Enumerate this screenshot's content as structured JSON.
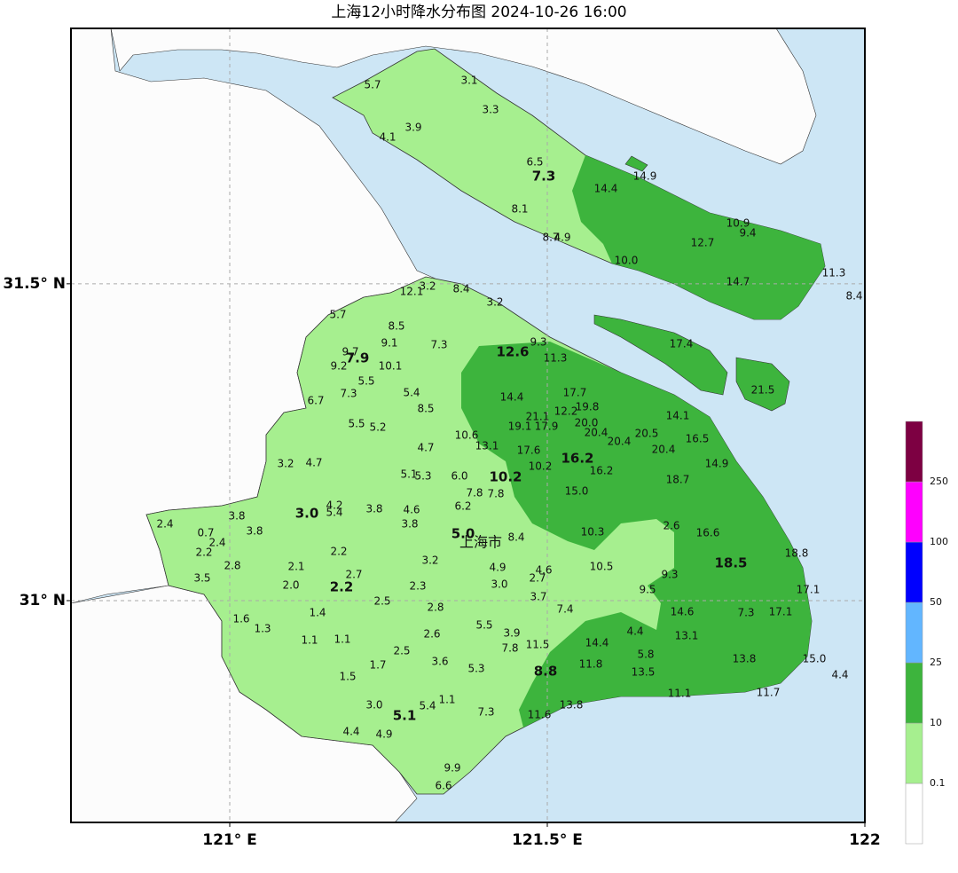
{
  "title": "上海12小时降水分布图 2024-10-26 16:00",
  "map": {
    "xlim": [
      120.75,
      122
    ],
    "ylim": [
      30.65,
      31.903
    ],
    "xticks": [
      {
        "value": 121,
        "label": "121° E"
      },
      {
        "value": 121.5,
        "label": "121.5° E"
      },
      122
    ],
    "yticks": [
      {
        "value": 31,
        "label": "31° N"
      },
      {
        "value": 31.5,
        "label": "31.5° N"
      }
    ],
    "grid": true,
    "city_label": "上海市",
    "stations": [
      "5.7",
      "3.1",
      "3.3",
      "3.9",
      "4.1",
      "6.5",
      "14.9",
      "14.4",
      "8.1",
      "8.7",
      "4.9",
      "10.9",
      "9.4",
      "12.7",
      "10.0",
      "14.7",
      "11.3",
      "8.4",
      "17.4",
      "21.5",
      "12.1",
      "3.2",
      "8.4",
      "3.2",
      "5.7",
      "8.5",
      "9.1",
      "7.3",
      "9.3",
      "11.3",
      "9.7",
      "9.2",
      "10.1",
      "5.5",
      "7.3",
      "5.4",
      "6.7",
      "14.4",
      "17.7",
      "8.5",
      "12.2",
      "19.8",
      "21.1",
      "14.1",
      "19.1",
      "17.9",
      "20.0",
      "20.4",
      "5.5",
      "5.2",
      "20.5",
      "16.5",
      "10.6",
      "4.7",
      "20.4",
      "13.1",
      "20.4",
      "17.6",
      "3.2",
      "4.7",
      "14.9",
      "10.2",
      "16.2",
      "5.1",
      "5.3",
      "6.0",
      "18.7",
      "7.8",
      "7.8",
      "15.0",
      "6.2",
      "4.2",
      "5.4",
      "3.8",
      "4.6",
      "3.8",
      "2.4",
      "3.8",
      "3.8",
      "2.6",
      "10.3",
      "0.7",
      "8.4",
      "16.6",
      "2.4",
      "2.2",
      "2.2",
      "18.8",
      "3.2",
      "2.8",
      "2.1",
      "10.5",
      "4.9",
      "4.6",
      "2.7",
      "9.3",
      "3.5",
      "2.7",
      "2.0",
      "3.0",
      "2.3",
      "9.5",
      "17.1",
      "3.7",
      "2.5",
      "2.8",
      "7.4",
      "14.6",
      "7.3",
      "17.1",
      "1.4",
      "1.6",
      "5.5",
      "1.3",
      "3.9",
      "4.4",
      "13.1",
      "2.6",
      "1.1",
      "1.1",
      "14.4",
      "11.5",
      "7.8",
      "2.5",
      "5.8",
      "13.8",
      "15.0",
      "3.6",
      "1.7",
      "11.8",
      "5.3",
      "13.5",
      "1.5",
      "4.4",
      "11.1",
      "11.7",
      "1.1",
      "5.4",
      "3.0",
      "13.8",
      "7.3",
      "11.6",
      "4.4",
      "4.9",
      "9.9",
      "6.6"
    ],
    "district_values": [
      "7.3",
      "12.6",
      "7.9",
      "16.2",
      "10.2",
      "3.0",
      "5.0",
      "18.5",
      "2.2",
      "8.8",
      "5.1"
    ]
  },
  "legend": {
    "levels": [
      0.1,
      10,
      25,
      50,
      100,
      250
    ],
    "colors": [
      "#ffffff",
      "#a6ef8f",
      "#3db43d",
      "#62b6ff",
      "#0000fe",
      "#fe00fe",
      "#7d0042"
    ]
  }
}
